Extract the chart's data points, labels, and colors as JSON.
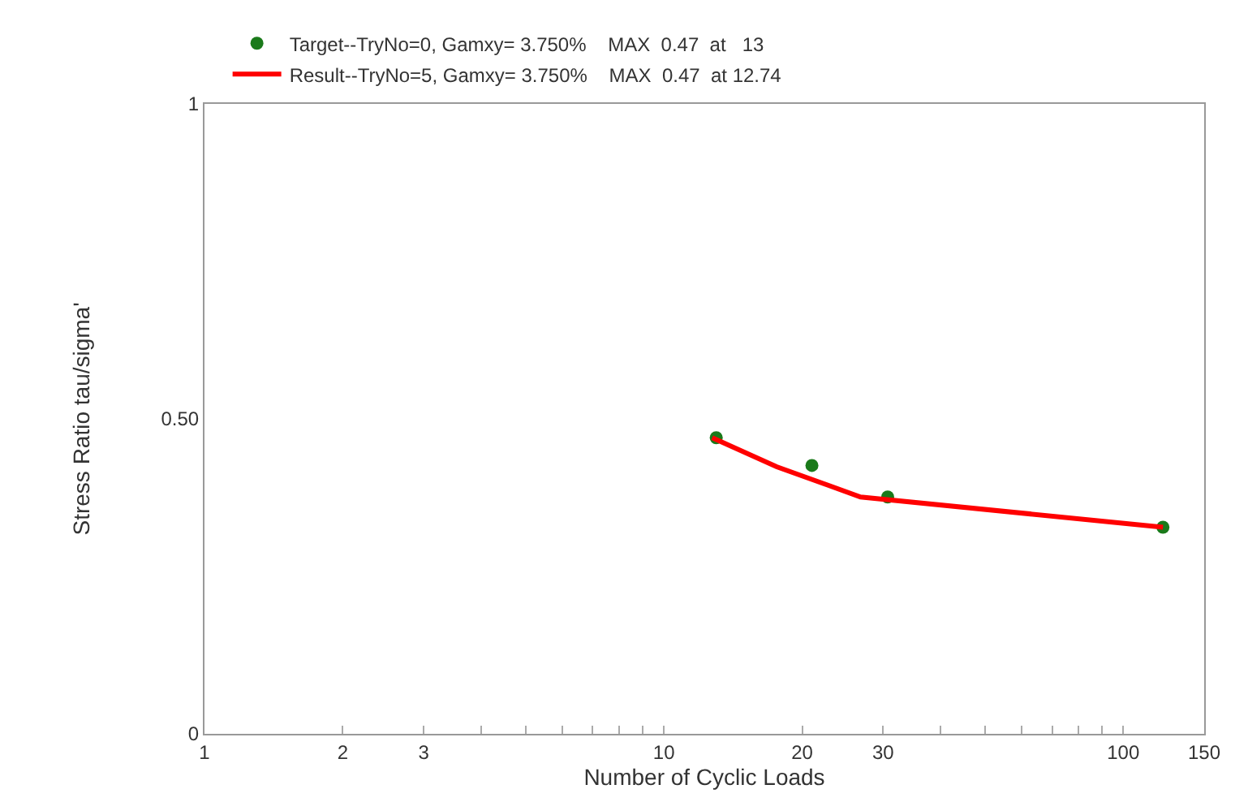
{
  "chart_data": {
    "type": "line",
    "xlabel": "Number of Cyclic Loads",
    "ylabel": "Stress Ratio tau/sigma'",
    "log": "x",
    "grid": false,
    "legend": "top left",
    "xlim": [
      1,
      150
    ],
    "xticks": [
      1,
      2,
      3,
      {
        "value": 4,
        "label": null
      },
      {
        "value": 5,
        "label": null
      },
      {
        "value": 6,
        "label": null
      },
      {
        "value": 7,
        "label": null
      },
      {
        "value": 8,
        "label": null
      },
      {
        "value": 9,
        "label": null
      },
      10,
      20,
      30,
      {
        "value": 40,
        "label": null
      },
      {
        "value": 50,
        "label": null
      },
      {
        "value": 60,
        "label": null
      },
      {
        "value": 70,
        "label": null
      },
      {
        "value": 80,
        "label": null
      },
      {
        "value": 90,
        "label": null
      },
      100,
      150
    ],
    "ylim": [
      0,
      1
    ],
    "yticks": [
      0,
      {
        "value": 0.5,
        "label": "0.50"
      },
      1
    ],
    "series": [
      {
        "name": "Target--TryNo=0, Gamxy= 3.750%    MAX  0.47  at   13",
        "type": "scatter",
        "marker": "circle",
        "color": "#1a7a1a",
        "x": [
          13,
          21,
          30.7,
          122
        ],
        "values": [
          0.47,
          0.426,
          0.376,
          0.328
        ]
      },
      {
        "name": "Result--TryNo=5, Gamxy= 3.750%    MAX  0.47  at 12.74",
        "marker": "none",
        "line_style": "solid",
        "color": "#ff0000",
        "x": [
          12.74,
          17.6,
          26.8,
          122
        ],
        "values": [
          0.47,
          0.424,
          0.376,
          0.328
        ]
      }
    ]
  }
}
